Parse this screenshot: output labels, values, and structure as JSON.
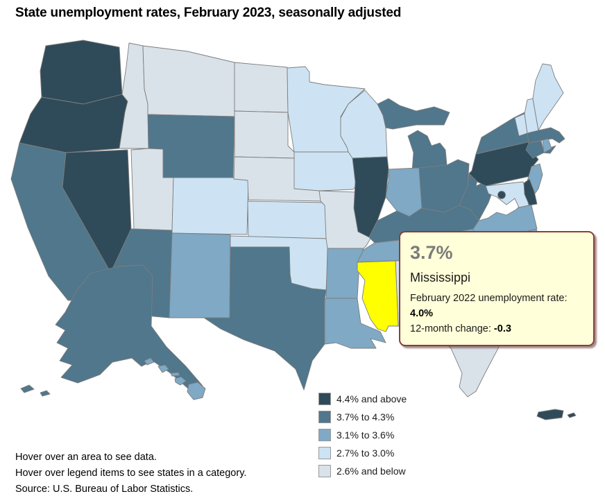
{
  "title": "State unemployment rates, February 2023, seasonally adjusted",
  "tooltip": {
    "value": "3.7%",
    "state": "Mississippi",
    "line1_label": "February 2022 unemployment rate: ",
    "line1_value": "4.0%",
    "line2_label": "12-month change: ",
    "line2_value": "-0.3"
  },
  "legend": {
    "items": [
      {
        "key": "cat5",
        "label": "4.4% and above",
        "color": "#2F4B59"
      },
      {
        "key": "cat4",
        "label": "3.7% to 4.3%",
        "color": "#50778C"
      },
      {
        "key": "cat3",
        "label": "3.1% to 3.6%",
        "color": "#7FA9C5"
      },
      {
        "key": "cat2",
        "label": "2.7% to 3.0%",
        "color": "#CDE3F4"
      },
      {
        "key": "cat1",
        "label": "2.6% and below",
        "color": "#D9E2E9"
      }
    ]
  },
  "map": {
    "border_color": "#7d7d7d",
    "highlight_color": "#FFFF00",
    "highlighted_state": "MS",
    "states": {
      "WA": "cat5",
      "OR": "cat5",
      "NV": "cat5",
      "IL": "cat5",
      "PA": "cat5",
      "DE": "cat5",
      "DC": "cat5",
      "PR": "cat5",
      "CA": "cat4",
      "AZ": "cat4",
      "AK": "cat4",
      "TX": "cat4",
      "WY": "cat4",
      "MI": "cat4",
      "OH": "cat4",
      "KY": "cat4",
      "WV": "cat4",
      "NY": "cat4",
      "MA": "cat4",
      "CT": "cat4",
      "NM": "cat3",
      "AR": "cat3",
      "LA": "cat3",
      "IN": "cat3",
      "VA": "cat3",
      "NJ": "cat3",
      "RI": "cat3",
      "HI": "cat3",
      "TN": "cat3",
      "GA": "cat3",
      "NC": "cat3",
      "SC": "cat3",
      "MN": "cat2",
      "WI": "cat2",
      "IA": "cat2",
      "CO": "cat2",
      "KS": "cat2",
      "OK": "cat2",
      "ME": "cat2",
      "VT": "cat2",
      "NH": "cat2",
      "MD": "cat2",
      "MT": "cat1",
      "ID": "cat1",
      "ND": "cat1",
      "SD": "cat1",
      "NE": "cat1",
      "MO": "cat1",
      "UT": "cat1",
      "FL": "cat1",
      "AL": "cat1"
    }
  },
  "footer": {
    "lines": [
      "Hover over an area to see data.",
      "Hover over legend items to see states in a category.",
      "Source: U.S. Bureau of Labor Statistics."
    ]
  },
  "chart_data": {
    "type": "choropleth-map",
    "title": "State unemployment rates, February 2023, seasonally adjusted",
    "legend_position": "bottom-center",
    "categories": [
      {
        "range": "4.4% and above",
        "color": "#2F4B59",
        "states": [
          "WA",
          "OR",
          "NV",
          "IL",
          "PA",
          "DE",
          "DC",
          "PR"
        ]
      },
      {
        "range": "3.7% to 4.3%",
        "color": "#50778C",
        "states": [
          "CA",
          "AZ",
          "AK",
          "TX",
          "WY",
          "MI",
          "OH",
          "KY",
          "WV",
          "NY",
          "MA",
          "CT"
        ]
      },
      {
        "range": "3.1% to 3.6%",
        "color": "#7FA9C5",
        "states": [
          "NM",
          "AR",
          "LA",
          "IN",
          "VA",
          "NJ",
          "RI",
          "HI",
          "TN"
        ]
      },
      {
        "range": "2.7% to 3.0%",
        "color": "#CDE3F4",
        "states": [
          "MN",
          "WI",
          "IA",
          "CO",
          "KS",
          "OK",
          "ME",
          "VT",
          "NH",
          "MD"
        ]
      },
      {
        "range": "2.6% and below",
        "color": "#D9E2E9",
        "states": [
          "MT",
          "ID",
          "ND",
          "SD",
          "NE",
          "MO",
          "UT",
          "FL",
          "AL"
        ]
      }
    ],
    "highlighted": {
      "state": "Mississippi",
      "feb_2023_rate_pct": 3.7,
      "feb_2022_rate_pct": 4.0,
      "twelve_month_change": -0.3
    },
    "source": "U.S. Bureau of Labor Statistics"
  }
}
